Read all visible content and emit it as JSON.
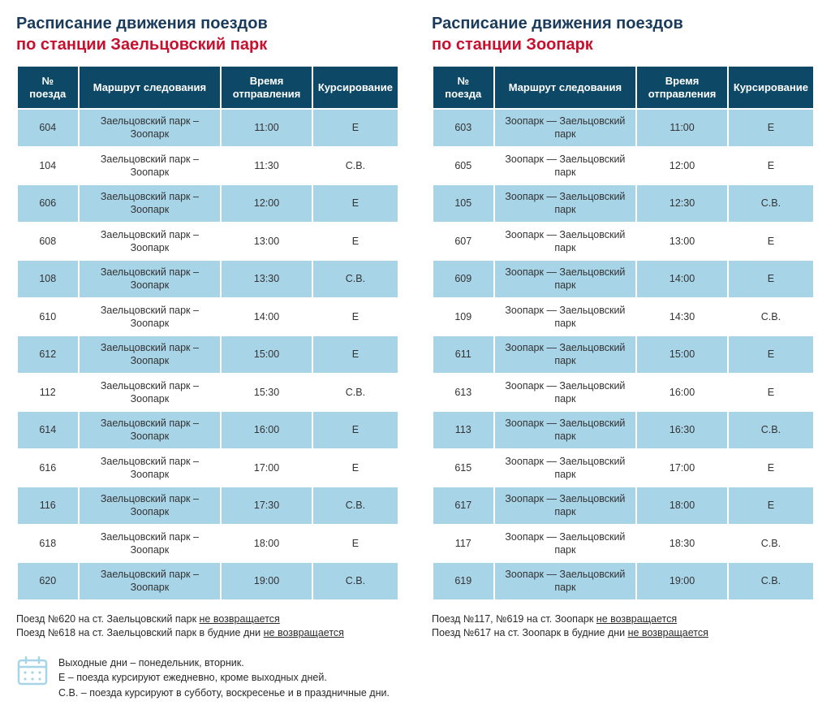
{
  "colors": {
    "title_main": "#1a3b5c",
    "title_sub": "#c8102e",
    "header_bg": "#0d4966",
    "header_fg": "#ffffff",
    "row_alt_bg": "#a8d4e8",
    "row_plain_bg": "#ffffff",
    "text": "#333333",
    "icon_stroke": "#a8d4e8"
  },
  "left": {
    "title_main": "Расписание движения поездов",
    "title_sub": "по станции Заельцовский парк",
    "columns": [
      "№ поезда",
      "Маршрут следования",
      "Время отправления",
      "Курсирование"
    ],
    "rows": [
      {
        "num": "604",
        "route": "Заельцовский парк – Зоопарк",
        "time": "11:00",
        "note": "Е"
      },
      {
        "num": "104",
        "route": "Заельцовский парк – Зоопарк",
        "time": "11:30",
        "note": "С.В."
      },
      {
        "num": "606",
        "route": "Заельцовский парк – Зоопарк",
        "time": "12:00",
        "note": "Е"
      },
      {
        "num": "608",
        "route": "Заельцовский парк – Зоопарк",
        "time": "13:00",
        "note": "Е"
      },
      {
        "num": "108",
        "route": "Заельцовский парк – Зоопарк",
        "time": "13:30",
        "note": "С.В."
      },
      {
        "num": "610",
        "route": "Заельцовский парк – Зоопарк",
        "time": "14:00",
        "note": "Е"
      },
      {
        "num": "612",
        "route": "Заельцовский парк – Зоопарк",
        "time": "15:00",
        "note": "Е"
      },
      {
        "num": "112",
        "route": "Заельцовский парк – Зоопарк",
        "time": "15:30",
        "note": "С.В."
      },
      {
        "num": "614",
        "route": "Заельцовский парк – Зоопарк",
        "time": "16:00",
        "note": "Е"
      },
      {
        "num": "616",
        "route": "Заельцовский парк – Зоопарк",
        "time": "17:00",
        "note": "Е"
      },
      {
        "num": "116",
        "route": "Заельцовский парк – Зоопарк",
        "time": "17:30",
        "note": "С.В."
      },
      {
        "num": "618",
        "route": "Заельцовский парк – Зоопарк",
        "time": "18:00",
        "note": "Е"
      },
      {
        "num": "620",
        "route": "Заельцовский парк – Зоопарк",
        "time": "19:00",
        "note": "С.В."
      }
    ],
    "notes": [
      {
        "pre": "Поезд №620 на ст. Заельцовский парк ",
        "u": "не возвращается"
      },
      {
        "pre": "Поезд №618 на ст. Заельцовский парк в будние дни ",
        "u": "не возвращается"
      }
    ]
  },
  "right": {
    "title_main": "Расписание движения поездов",
    "title_sub": "по станции Зоопарк",
    "columns": [
      "№ поезда",
      "Маршрут следования",
      "Время отправления",
      "Курсирование"
    ],
    "rows": [
      {
        "num": "603",
        "route": "Зоопарк — Заельцовский парк",
        "time": "11:00",
        "note": "Е"
      },
      {
        "num": "605",
        "route": "Зоопарк — Заельцовский парк",
        "time": "12:00",
        "note": "Е"
      },
      {
        "num": "105",
        "route": "Зоопарк — Заельцовский парк",
        "time": "12:30",
        "note": "С.В."
      },
      {
        "num": "607",
        "route": "Зоопарк — Заельцовский парк",
        "time": "13:00",
        "note": "Е"
      },
      {
        "num": "609",
        "route": "Зоопарк — Заельцовский парк",
        "time": "14:00",
        "note": "Е"
      },
      {
        "num": "109",
        "route": "Зоопарк — Заельцовский парк",
        "time": "14:30",
        "note": "С.В."
      },
      {
        "num": "611",
        "route": "Зоопарк — Заельцовский парк",
        "time": "15:00",
        "note": "Е"
      },
      {
        "num": "613",
        "route": "Зоопарк — Заельцовский парк",
        "time": "16:00",
        "note": "Е"
      },
      {
        "num": "113",
        "route": "Зоопарк — Заельцовский парк",
        "time": "16:30",
        "note": "С.В."
      },
      {
        "num": "615",
        "route": "Зоопарк — Заельцовский парк",
        "time": "17:00",
        "note": "Е"
      },
      {
        "num": "617",
        "route": "Зоопарк — Заельцовский парк",
        "time": "18:00",
        "note": "Е"
      },
      {
        "num": "117",
        "route": "Зоопарк — Заельцовский парк",
        "time": "18:30",
        "note": "С.В."
      },
      {
        "num": "619",
        "route": "Зоопарк — Заельцовский парк",
        "time": "19:00",
        "note": "С.В."
      }
    ],
    "notes": [
      {
        "pre": "Поезд №117, №619 на ст. Зоопарк ",
        "u": "не возвращается"
      },
      {
        "pre": "Поезд №617 на ст. Зоопарк в будние дни ",
        "u": "не возвращается"
      }
    ]
  },
  "legend": {
    "lines": [
      "Выходные дни – понедельник, вторник.",
      "Е – поезда курсируют ежедневно, кроме выходных дней.",
      "С.В. – поезда курсируют в субботу, воскресенье и в праздничные дни."
    ]
  }
}
